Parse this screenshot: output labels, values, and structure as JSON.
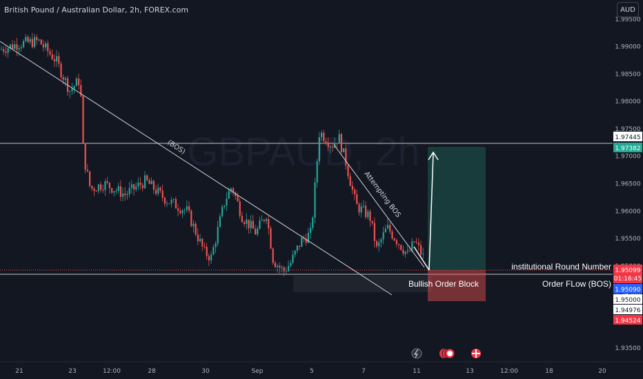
{
  "header": {
    "symbol_title": "British Pound / Australian Dollar, 2h, FOREX.com"
  },
  "currency_button": "AUD",
  "watermark": "GBPAUD, 2h",
  "colors": {
    "background": "#131722",
    "up": "#26a69a",
    "down": "#ef5350",
    "text": "#d1d4dc",
    "grid_line": "#363a45",
    "white_line": "#c8c8c8"
  },
  "chart_data": {
    "type": "candlestick",
    "y_range": [
      1.9325,
      1.9985
    ],
    "y_ticks": [
      "1.99500",
      "1.99000",
      "1.98500",
      "1.98000",
      "1.97500",
      "1.97000",
      "1.96500",
      "1.96000",
      "1.95500",
      "1.95000",
      "1.94500",
      "1.94000",
      "1.93500"
    ],
    "x_ticks": [
      "21",
      "23",
      "12:00",
      "28",
      "30",
      "Sep",
      "5",
      "7",
      "11",
      "13",
      "12:00",
      "18",
      "20"
    ],
    "price_labels": {
      "level_top": "1.97445",
      "take_profit": "1.97382",
      "current_price": "1.95099",
      "countdown": "01:16:45",
      "order_flow": "1.95090",
      "round_number": "1.95000",
      "entry_low": "1.94976",
      "stop_loss": "1.94524"
    },
    "annotations": {
      "bos": "(BOS)",
      "attempting_bos": "Attempting BOS",
      "round_number": "institutional Round Number",
      "order_block": "Bullish Order Block",
      "order_flow": "Order FLow (BOS)"
    },
    "price_path": [
      [
        0,
        1.9895
      ],
      [
        25,
        1.9905
      ],
      [
        55,
        1.991
      ],
      [
        80,
        1.9875
      ],
      [
        100,
        1.982
      ],
      [
        115,
        1.984
      ],
      [
        120,
        1.97
      ],
      [
        130,
        1.964
      ],
      [
        150,
        1.965
      ],
      [
        180,
        1.963
      ],
      [
        210,
        1.9655
      ],
      [
        240,
        1.962
      ],
      [
        270,
        1.96
      ],
      [
        295,
        1.9525
      ],
      [
        305,
        1.9515
      ],
      [
        325,
        1.962
      ],
      [
        335,
        1.9645
      ],
      [
        350,
        1.959
      ],
      [
        370,
        1.956
      ],
      [
        385,
        1.9595
      ],
      [
        395,
        1.951
      ],
      [
        410,
        1.949
      ],
      [
        420,
        1.9505
      ],
      [
        435,
        1.9545
      ],
      [
        450,
        1.956
      ],
      [
        462,
        1.9745
      ],
      [
        480,
        1.972
      ],
      [
        490,
        1.9735
      ],
      [
        500,
        1.969
      ],
      [
        515,
        1.961
      ],
      [
        535,
        1.959
      ],
      [
        545,
        1.953
      ],
      [
        560,
        1.957
      ],
      [
        575,
        1.9545
      ],
      [
        590,
        1.952
      ],
      [
        600,
        1.9545
      ],
      [
        615,
        1.951
      ]
    ]
  }
}
